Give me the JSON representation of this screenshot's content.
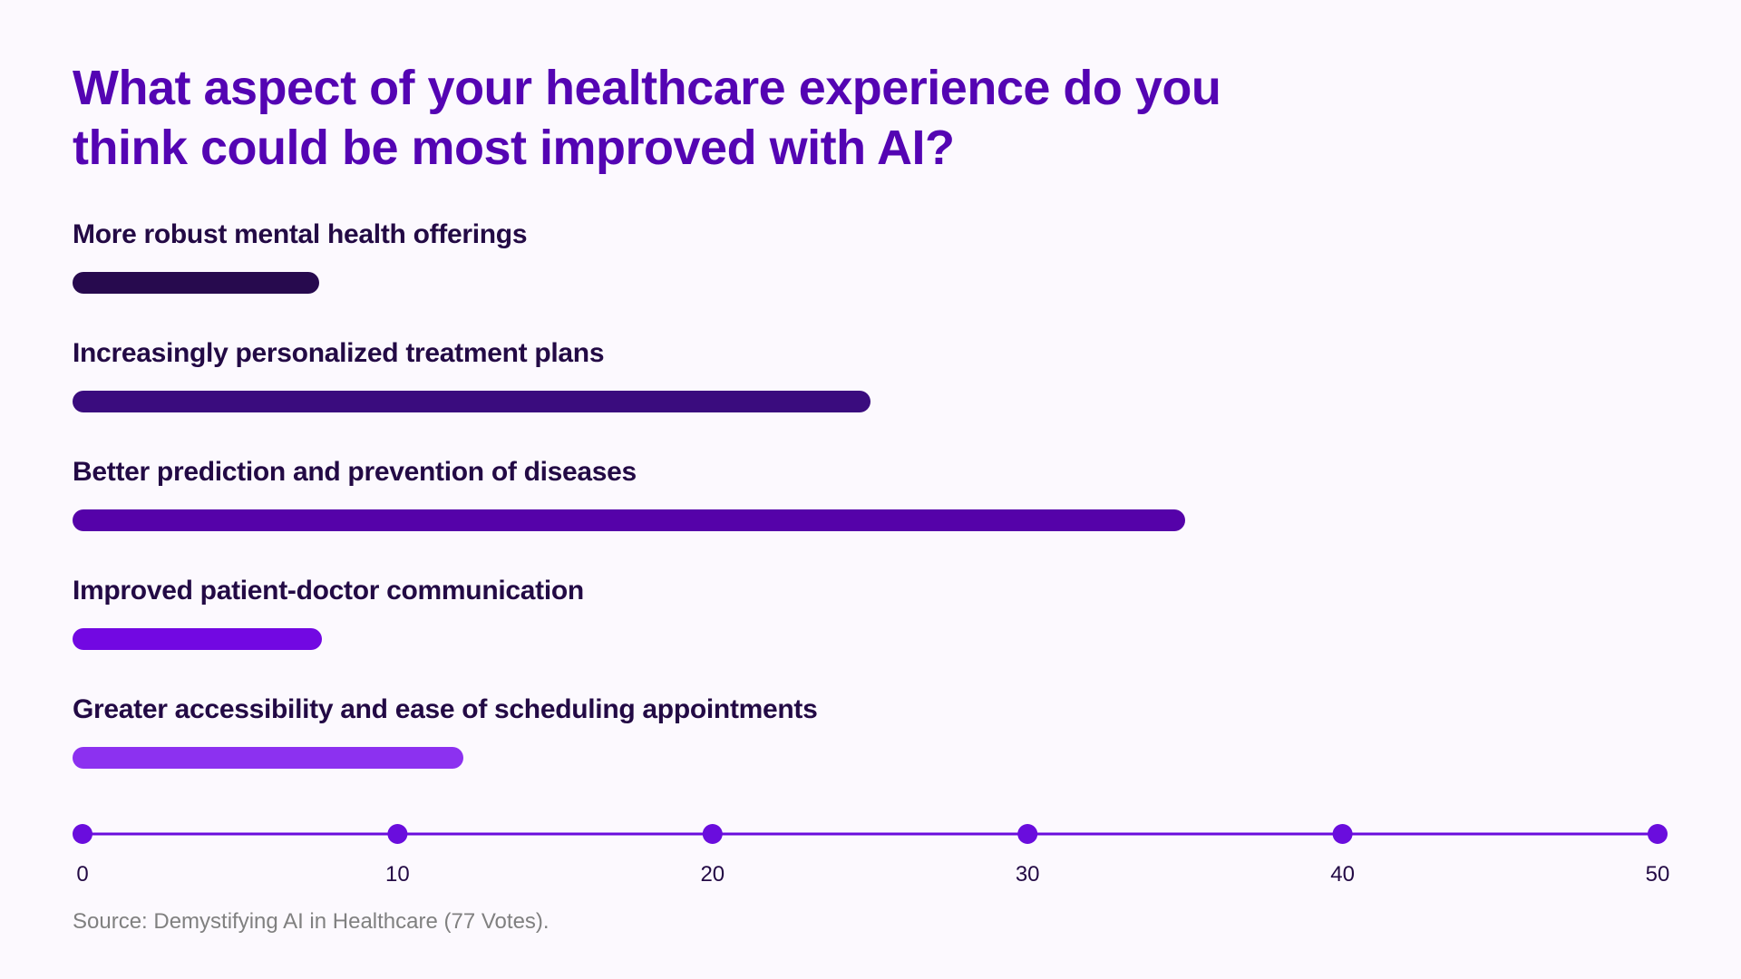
{
  "chart_data": {
    "type": "bar",
    "orientation": "horizontal",
    "title": "What aspect of your healthcare experience do you think could be most improved with AI?",
    "categories": [
      "More robust mental health offerings",
      "Increasingly personalized treatment plans",
      "Better prediction and prevention of diseases",
      "Improved patient-doctor communication",
      "Greater accessibility and ease of scheduling appointments"
    ],
    "values": [
      7.5,
      25,
      35,
      7.6,
      12.1
    ],
    "bar_colors": [
      "#270a4e",
      "#3a0c7e",
      "#5502a9",
      "#7208e2",
      "#8c31f0"
    ],
    "xlim": [
      0,
      50
    ],
    "x_ticks": [
      "0",
      "10",
      "20",
      "30",
      "40",
      "50"
    ],
    "axis_color": "#6a0ddd",
    "source": "Source: Demystifying AI in Healthcare (77 Votes)."
  }
}
